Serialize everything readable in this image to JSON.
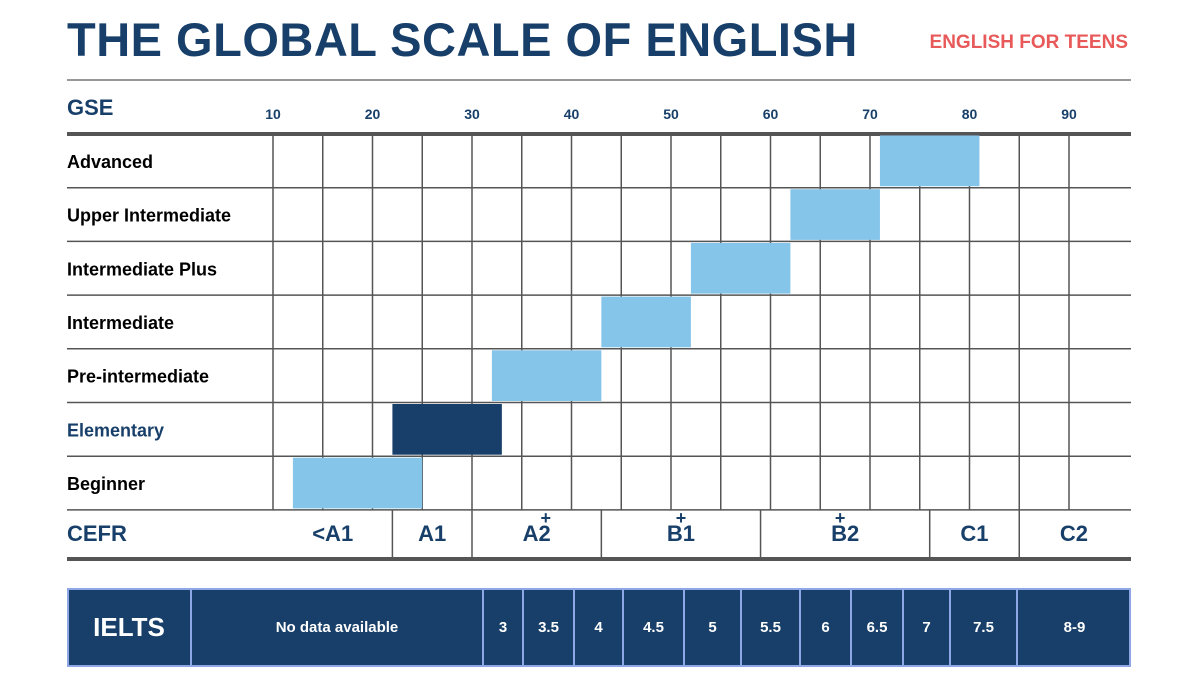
{
  "header": {
    "title": "THE GLOBAL SCALE OF ENGLISH",
    "subtitle": "ENGLISH FOR TEENS"
  },
  "colors": {
    "navy": "#173f69",
    "light_blue": "#86c5ea",
    "accent_red": "#e85a5a",
    "ielts_border": "#8ea7e6",
    "grid": "#555555"
  },
  "chart_data": {
    "type": "bar",
    "orientation": "horizontal-range",
    "axis_label": "GSE",
    "x_ticks": [
      10,
      20,
      30,
      40,
      50,
      60,
      70,
      80,
      90
    ],
    "xlim": [
      10,
      96
    ],
    "grid": true,
    "levels": [
      {
        "name": "Advanced",
        "start": 71,
        "end": 81,
        "highlight": false
      },
      {
        "name": "Upper Intermediate",
        "start": 62,
        "end": 71,
        "highlight": false
      },
      {
        "name": "Intermediate Plus",
        "start": 52,
        "end": 62,
        "highlight": false
      },
      {
        "name": "Intermediate",
        "start": 43,
        "end": 52,
        "highlight": false
      },
      {
        "name": "Pre-intermediate",
        "start": 32,
        "end": 43,
        "highlight": false
      },
      {
        "name": "Elementary",
        "start": 22,
        "end": 33,
        "highlight": true
      },
      {
        "name": "Beginner",
        "start": 12,
        "end": 25,
        "highlight": false
      }
    ],
    "cefr": {
      "label": "CEFR",
      "bands": [
        {
          "label": "<A1",
          "start": 10,
          "end": 22,
          "plus_at": null
        },
        {
          "label": "A1",
          "start": 22,
          "end": 30,
          "plus_at": null
        },
        {
          "label": "A2",
          "start": 30,
          "end": 43,
          "plus_at": 36
        },
        {
          "label": "B1",
          "start": 43,
          "end": 59,
          "plus_at": 51
        },
        {
          "label": "B2",
          "start": 59,
          "end": 76,
          "plus_at": 67
        },
        {
          "label": "C1",
          "start": 76,
          "end": 85,
          "plus_at": null
        },
        {
          "label": "C2",
          "start": 85,
          "end": 96,
          "plus_at": null
        }
      ],
      "plus_symbol": "+"
    }
  },
  "ielts": {
    "label": "IELTS",
    "cells": [
      "No data available",
      "3",
      "3.5",
      "4",
      "4.5",
      "5",
      "5.5",
      "6",
      "6.5",
      "7",
      "7.5",
      "8-9"
    ]
  }
}
